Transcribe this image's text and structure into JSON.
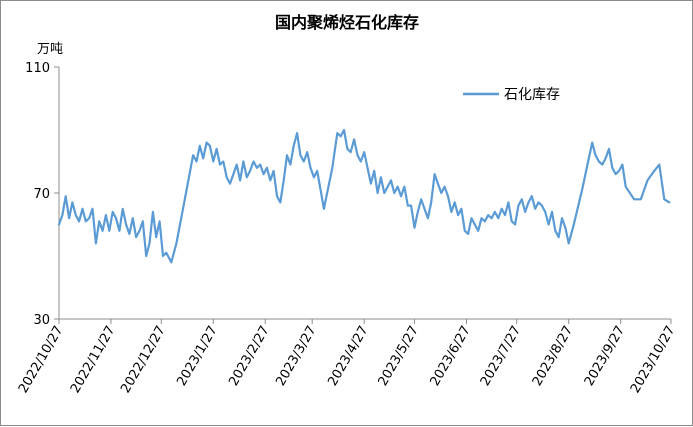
{
  "chart_data": {
    "type": "line",
    "title": "国内聚烯烃石化库存",
    "ylabel": "万吨",
    "ylim": [
      30,
      110
    ],
    "yticks": [
      30,
      70,
      110
    ],
    "xlim": [
      "2022-10-27",
      "2023-10-27"
    ],
    "xticks": [
      "2022/10/27",
      "2022/11/27",
      "2022/12/27",
      "2023/1/27",
      "2023/2/27",
      "2023/3/27",
      "2023/4/27",
      "2023/5/27",
      "2023/6/27",
      "2023/7/27",
      "2023/8/27",
      "2023/9/27",
      "2023/10/27"
    ],
    "grid": false,
    "legend": "top-right",
    "series": [
      {
        "name": "石化库存",
        "color": "#5b9bd5",
        "points": [
          [
            "2022-10-27",
            60
          ],
          [
            "2022-10-29",
            63
          ],
          [
            "2022-10-31",
            69
          ],
          [
            "2022-11-02",
            62
          ],
          [
            "2022-11-04",
            67
          ],
          [
            "2022-11-06",
            63
          ],
          [
            "2022-11-08",
            61
          ],
          [
            "2022-11-10",
            65
          ],
          [
            "2022-11-12",
            61
          ],
          [
            "2022-11-14",
            62
          ],
          [
            "2022-11-16",
            65
          ],
          [
            "2022-11-18",
            54
          ],
          [
            "2022-11-20",
            61
          ],
          [
            "2022-11-22",
            58
          ],
          [
            "2022-11-24",
            63
          ],
          [
            "2022-11-26",
            58
          ],
          [
            "2022-11-28",
            64
          ],
          [
            "2022-11-30",
            62
          ],
          [
            "2022-12-02",
            58
          ],
          [
            "2022-12-04",
            65
          ],
          [
            "2022-12-06",
            60
          ],
          [
            "2022-12-08",
            57
          ],
          [
            "2022-12-10",
            62
          ],
          [
            "2022-12-12",
            56
          ],
          [
            "2022-12-14",
            58
          ],
          [
            "2022-12-16",
            61
          ],
          [
            "2022-12-18",
            50
          ],
          [
            "2022-12-20",
            54
          ],
          [
            "2022-12-22",
            64
          ],
          [
            "2022-12-24",
            56
          ],
          [
            "2022-12-26",
            61
          ],
          [
            "2022-12-28",
            50
          ],
          [
            "2022-12-30",
            51
          ],
          [
            "2023-01-02",
            48
          ],
          [
            "2023-01-05",
            54
          ],
          [
            "2023-01-10",
            68
          ],
          [
            "2023-01-15",
            82
          ],
          [
            "2023-01-17",
            80
          ],
          [
            "2023-01-19",
            85
          ],
          [
            "2023-01-21",
            81
          ],
          [
            "2023-01-23",
            86
          ],
          [
            "2023-01-25",
            85
          ],
          [
            "2023-01-27",
            80
          ],
          [
            "2023-01-29",
            84
          ],
          [
            "2023-01-31",
            79
          ],
          [
            "2023-02-02",
            80
          ],
          [
            "2023-02-04",
            75
          ],
          [
            "2023-02-06",
            73
          ],
          [
            "2023-02-08",
            76
          ],
          [
            "2023-02-10",
            79
          ],
          [
            "2023-02-12",
            74
          ],
          [
            "2023-02-14",
            80
          ],
          [
            "2023-02-16",
            75
          ],
          [
            "2023-02-18",
            77
          ],
          [
            "2023-02-20",
            80
          ],
          [
            "2023-02-22",
            78
          ],
          [
            "2023-02-24",
            79
          ],
          [
            "2023-02-26",
            76
          ],
          [
            "2023-02-28",
            78
          ],
          [
            "2023-03-02",
            74
          ],
          [
            "2023-03-04",
            77
          ],
          [
            "2023-03-06",
            69
          ],
          [
            "2023-03-08",
            67
          ],
          [
            "2023-03-10",
            74
          ],
          [
            "2023-03-12",
            82
          ],
          [
            "2023-03-14",
            79
          ],
          [
            "2023-03-16",
            85
          ],
          [
            "2023-03-18",
            89
          ],
          [
            "2023-03-20",
            82
          ],
          [
            "2023-03-22",
            80
          ],
          [
            "2023-03-24",
            83
          ],
          [
            "2023-03-26",
            78
          ],
          [
            "2023-03-28",
            75
          ],
          [
            "2023-03-30",
            77
          ],
          [
            "2023-04-01",
            71
          ],
          [
            "2023-04-03",
            65
          ],
          [
            "2023-04-08",
            78
          ],
          [
            "2023-04-11",
            89
          ],
          [
            "2023-04-13",
            88
          ],
          [
            "2023-04-15",
            90
          ],
          [
            "2023-04-17",
            84
          ],
          [
            "2023-04-19",
            83
          ],
          [
            "2023-04-21",
            87
          ],
          [
            "2023-04-23",
            82
          ],
          [
            "2023-04-25",
            80
          ],
          [
            "2023-04-27",
            83
          ],
          [
            "2023-04-29",
            78
          ],
          [
            "2023-05-01",
            73
          ],
          [
            "2023-05-03",
            77
          ],
          [
            "2023-05-05",
            70
          ],
          [
            "2023-05-07",
            75
          ],
          [
            "2023-05-09",
            70
          ],
          [
            "2023-05-11",
            72
          ],
          [
            "2023-05-13",
            74
          ],
          [
            "2023-05-15",
            70
          ],
          [
            "2023-05-17",
            72
          ],
          [
            "2023-05-19",
            69
          ],
          [
            "2023-05-21",
            72
          ],
          [
            "2023-05-23",
            66
          ],
          [
            "2023-05-25",
            66
          ],
          [
            "2023-05-27",
            59
          ],
          [
            "2023-05-29",
            64
          ],
          [
            "2023-05-31",
            68
          ],
          [
            "2023-06-02",
            65
          ],
          [
            "2023-06-04",
            62
          ],
          [
            "2023-06-06",
            67
          ],
          [
            "2023-06-08",
            76
          ],
          [
            "2023-06-10",
            73
          ],
          [
            "2023-06-12",
            70
          ],
          [
            "2023-06-14",
            72
          ],
          [
            "2023-06-16",
            69
          ],
          [
            "2023-06-18",
            64
          ],
          [
            "2023-06-20",
            67
          ],
          [
            "2023-06-22",
            63
          ],
          [
            "2023-06-24",
            65
          ],
          [
            "2023-06-26",
            58
          ],
          [
            "2023-06-28",
            57
          ],
          [
            "2023-06-30",
            62
          ],
          [
            "2023-07-02",
            60
          ],
          [
            "2023-07-04",
            58
          ],
          [
            "2023-07-06",
            62
          ],
          [
            "2023-07-08",
            61
          ],
          [
            "2023-07-10",
            63
          ],
          [
            "2023-07-12",
            62
          ],
          [
            "2023-07-14",
            64
          ],
          [
            "2023-07-16",
            62
          ],
          [
            "2023-07-18",
            65
          ],
          [
            "2023-07-20",
            63
          ],
          [
            "2023-07-22",
            67
          ],
          [
            "2023-07-24",
            61
          ],
          [
            "2023-07-26",
            60
          ],
          [
            "2023-07-28",
            66
          ],
          [
            "2023-07-30",
            68
          ],
          [
            "2023-08-01",
            64
          ],
          [
            "2023-08-03",
            67
          ],
          [
            "2023-08-05",
            69
          ],
          [
            "2023-08-07",
            65
          ],
          [
            "2023-08-09",
            67
          ],
          [
            "2023-08-11",
            66
          ],
          [
            "2023-08-13",
            64
          ],
          [
            "2023-08-15",
            60
          ],
          [
            "2023-08-17",
            64
          ],
          [
            "2023-08-19",
            58
          ],
          [
            "2023-08-21",
            56
          ],
          [
            "2023-08-23",
            62
          ],
          [
            "2023-08-25",
            59
          ],
          [
            "2023-08-27",
            54
          ],
          [
            "2023-08-30",
            60
          ],
          [
            "2023-09-04",
            71
          ],
          [
            "2023-09-08",
            81
          ],
          [
            "2023-09-10",
            86
          ],
          [
            "2023-09-12",
            82
          ],
          [
            "2023-09-14",
            80
          ],
          [
            "2023-09-16",
            79
          ],
          [
            "2023-09-18",
            81
          ],
          [
            "2023-09-20",
            84
          ],
          [
            "2023-09-22",
            78
          ],
          [
            "2023-09-24",
            76
          ],
          [
            "2023-09-26",
            77
          ],
          [
            "2023-09-28",
            79
          ],
          [
            "2023-09-30",
            72
          ],
          [
            "2023-10-05",
            68
          ],
          [
            "2023-10-09",
            68
          ],
          [
            "2023-10-13",
            74
          ],
          [
            "2023-10-17",
            77
          ],
          [
            "2023-10-20",
            79
          ],
          [
            "2023-10-23",
            68
          ],
          [
            "2023-10-26",
            67
          ]
        ]
      }
    ]
  }
}
